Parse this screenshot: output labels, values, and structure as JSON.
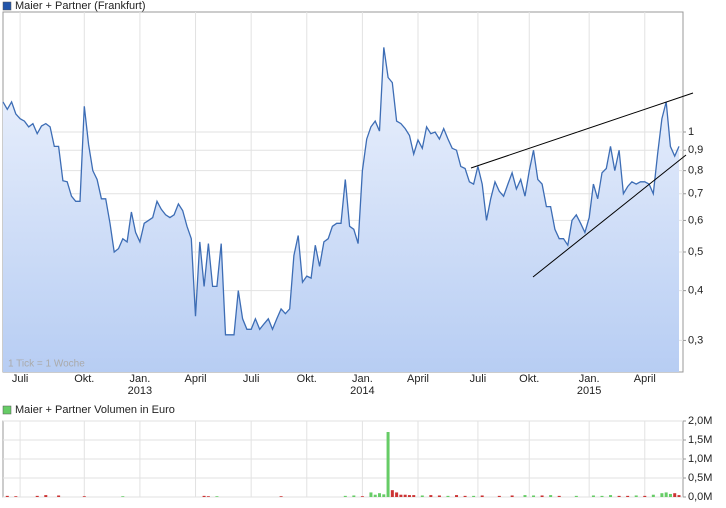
{
  "chart_data": [
    {
      "type": "line",
      "series": [
        {
          "name": "Maier + Partner (Frankfurt)",
          "color": "#3d6db5",
          "values": [
            1.19,
            1.14,
            1.19,
            1.11,
            1.08,
            1.065,
            1.03,
            1.05,
            0.99,
            1.035,
            1.05,
            1.03,
            0.92,
            0.92,
            0.755,
            0.75,
            0.69,
            0.67,
            0.67,
            1.16,
            0.93,
            0.8,
            0.76,
            0.68,
            0.68,
            0.59,
            0.5,
            0.51,
            0.54,
            0.53,
            0.63,
            0.56,
            0.53,
            0.59,
            0.6,
            0.61,
            0.67,
            0.64,
            0.62,
            0.61,
            0.62,
            0.66,
            0.635,
            0.58,
            0.54,
            0.345,
            0.53,
            0.41,
            0.525,
            0.41,
            0.41,
            0.525,
            0.31,
            0.31,
            0.31,
            0.4,
            0.34,
            0.32,
            0.32,
            0.34,
            0.32,
            0.33,
            0.34,
            0.32,
            0.34,
            0.36,
            0.35,
            0.36,
            0.49,
            0.55,
            0.42,
            0.435,
            0.43,
            0.52,
            0.46,
            0.53,
            0.54,
            0.58,
            0.59,
            0.59,
            0.76,
            0.58,
            0.57,
            0.525,
            0.8,
            0.96,
            1.03,
            1.065,
            1.005,
            1.63,
            1.37,
            1.33,
            1.065,
            1.05,
            1.02,
            0.98,
            0.88,
            0.955,
            0.91,
            1.03,
            0.99,
            1.0,
            0.96,
            1.02,
            0.96,
            0.91,
            0.9,
            0.82,
            0.81,
            0.75,
            0.74,
            0.82,
            0.74,
            0.6,
            0.68,
            0.75,
            0.71,
            0.69,
            0.74,
            0.79,
            0.72,
            0.76,
            0.69,
            0.8,
            0.9,
            0.76,
            0.74,
            0.65,
            0.65,
            0.57,
            0.54,
            0.54,
            0.52,
            0.6,
            0.62,
            0.59,
            0.56,
            0.61,
            0.74,
            0.68,
            0.79,
            0.81,
            0.92,
            0.8,
            0.9,
            0.7,
            0.73,
            0.75,
            0.74,
            0.75,
            0.75,
            0.74,
            0.7,
            0.88,
            1.08,
            1.19,
            0.92,
            0.87,
            0.92
          ]
        }
      ],
      "categories": [
        null,
        null,
        null,
        null,
        "Juli",
        null,
        null,
        null,
        null,
        null,
        null,
        null,
        null,
        null,
        null,
        null,
        null,
        null,
        null,
        "Okt.",
        null,
        null,
        null,
        null,
        null,
        null,
        null,
        null,
        null,
        null,
        null,
        null,
        "Jan.\n2013",
        null,
        null,
        null,
        null,
        null,
        null,
        null,
        null,
        null,
        null,
        null,
        null,
        "April",
        null,
        null,
        null,
        null,
        null,
        null,
        null,
        null,
        null,
        null,
        null,
        null,
        "Juli",
        null,
        null,
        null,
        null,
        null,
        null,
        null,
        null,
        null,
        null,
        null,
        null,
        "Okt.",
        null,
        null,
        null,
        null,
        null,
        null,
        null,
        null,
        null,
        null,
        null,
        null,
        "Jan.\n2014",
        null,
        null,
        null,
        null,
        null,
        null,
        null,
        null,
        null,
        null,
        null,
        null,
        "April",
        null,
        null,
        null,
        null,
        null,
        null,
        null,
        null,
        null,
        null,
        null,
        null,
        null,
        "Juli",
        null,
        null,
        null,
        null,
        null,
        null,
        null,
        null,
        null,
        null,
        null,
        "Okt.",
        null,
        null,
        null,
        null,
        null,
        null,
        null,
        null,
        null,
        null,
        null,
        null,
        null,
        "Jan.\n2015",
        null,
        null,
        null,
        null,
        null,
        null,
        null,
        null,
        null,
        null,
        null,
        null,
        "April",
        null,
        null,
        null,
        null,
        null,
        null,
        null,
        null
      ],
      "ylim": [
        0.25,
        2
      ],
      "yticks": [
        1,
        {
          "value": 0.9,
          "label": "0,9"
        },
        {
          "value": 0.8,
          "label": "0,8"
        },
        {
          "value": 0.7,
          "label": "0,7"
        },
        {
          "value": 0.6,
          "label": "0,6"
        },
        {
          "value": 0.5,
          "label": "0,5"
        },
        {
          "value": 0.4,
          "label": "0,4"
        },
        {
          "value": 0.3,
          "label": "0,3"
        }
      ],
      "log_scale": true,
      "grid": true,
      "annotation": "1 Tick = 1 Woche"
    },
    {
      "type": "bar",
      "series": [
        {
          "name": "Maier + Partner Volumen in Euro",
          "color": "#66cc66",
          "values": [
            null,
            30000,
            null,
            20000,
            null,
            null,
            null,
            null,
            30000,
            null,
            50000,
            null,
            null,
            40000,
            null,
            null,
            null,
            null,
            null,
            20000,
            null,
            null,
            null,
            null,
            null,
            null,
            null,
            null,
            20000,
            null,
            null,
            null,
            null,
            null,
            null,
            null,
            null,
            null,
            null,
            null,
            null,
            null,
            null,
            null,
            null,
            null,
            null,
            30000,
            20000,
            null,
            20000,
            null,
            null,
            null,
            null,
            null,
            null,
            null,
            null,
            null,
            null,
            null,
            null,
            null,
            null,
            20000,
            null,
            null,
            null,
            null,
            null,
            null,
            null,
            null,
            null,
            null,
            null,
            null,
            null,
            null,
            30000,
            null,
            40000,
            null,
            20000,
            null,
            120000,
            60000,
            100000,
            70000,
            1710000,
            180000,
            120000,
            60000,
            60000,
            50000,
            50000,
            null,
            40000,
            null,
            50000,
            null,
            40000,
            null,
            30000,
            null,
            50000,
            null,
            30000,
            null,
            30000,
            null,
            40000,
            null,
            null,
            null,
            30000,
            null,
            null,
            40000,
            null,
            null,
            50000,
            null,
            40000,
            null,
            40000,
            null,
            50000,
            null,
            30000,
            null,
            null,
            null,
            30000,
            null,
            null,
            null,
            40000,
            null,
            30000,
            null,
            50000,
            null,
            30000,
            null,
            30000,
            null,
            40000,
            null,
            30000,
            null,
            60000,
            null,
            100000,
            120000,
            80000,
            100000,
            50000
          ],
          "colors": [
            null,
            "#cc3333",
            null,
            "#cc3333",
            null,
            null,
            null,
            null,
            "#cc3333",
            null,
            "#cc3333",
            null,
            null,
            "#cc3333",
            null,
            null,
            null,
            null,
            null,
            "#cc3333",
            null,
            null,
            null,
            null,
            null,
            null,
            null,
            null,
            "#66cc66",
            null,
            null,
            null,
            null,
            null,
            null,
            null,
            null,
            null,
            null,
            null,
            null,
            null,
            null,
            null,
            null,
            null,
            null,
            "#cc3333",
            "#cc3333",
            null,
            "#66cc66",
            null,
            null,
            null,
            null,
            null,
            null,
            null,
            null,
            null,
            null,
            null,
            null,
            null,
            null,
            "#cc3333",
            null,
            null,
            null,
            null,
            null,
            null,
            null,
            null,
            null,
            null,
            null,
            null,
            null,
            null,
            "#66cc66",
            null,
            "#66cc66",
            null,
            "#cc3333",
            null,
            "#66cc66",
            "#66cc66",
            "#66cc66",
            "#66cc66",
            "#66cc66",
            "#cc3333",
            "#cc3333",
            "#cc3333",
            "#cc3333",
            "#cc3333",
            "#cc3333",
            null,
            "#66cc66",
            null,
            "#cc3333",
            null,
            "#cc3333",
            null,
            "#66cc66",
            null,
            "#cc3333",
            null,
            "#cc3333",
            null,
            "#66cc66",
            null,
            "#cc3333",
            null,
            null,
            null,
            "#cc3333",
            null,
            null,
            "#cc3333",
            null,
            null,
            "#66cc66",
            null,
            "#66cc66",
            null,
            "#cc3333",
            null,
            "#66cc66",
            null,
            "#cc3333",
            null,
            null,
            null,
            "#66cc66",
            null,
            null,
            null,
            "#66cc66",
            null,
            "#66cc66",
            null,
            "#66cc66",
            null,
            "#cc3333",
            null,
            "#cc3333",
            null,
            "#66cc66",
            null,
            "#cc3333",
            null,
            "#66cc66",
            null,
            "#66cc66",
            "#66cc66",
            "#66cc66",
            "#cc3333",
            "#cc3333"
          ]
        }
      ],
      "ylim": [
        0,
        2000000
      ],
      "yticks": [
        {
          "value": 0,
          "label": "0,0M"
        },
        {
          "value": 500000,
          "label": "0,5M"
        },
        {
          "value": 1000000,
          "label": "1,0M"
        },
        {
          "value": 1500000,
          "label": "1,5M"
        },
        {
          "value": 2000000,
          "label": "2,0M"
        }
      ],
      "grid": true
    }
  ]
}
